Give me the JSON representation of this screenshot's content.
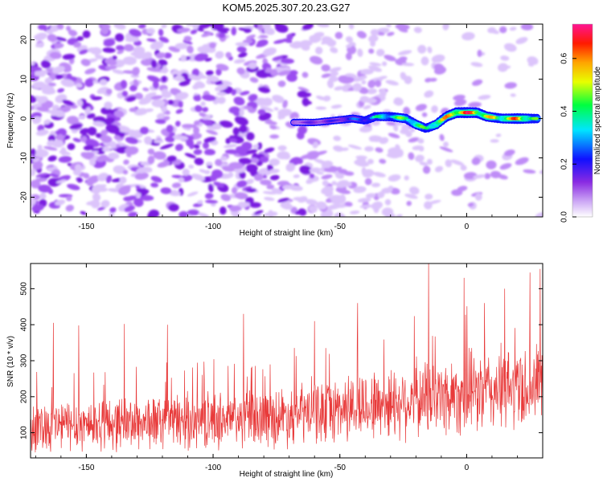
{
  "title": "KOM5.2025.307.20.23.G27",
  "chart_data": [
    {
      "type": "heatmap",
      "title": "KOM5.2025.307.20.23.G27",
      "xlabel": "Height of straight line (km)",
      "ylabel": "Frequency (Hz)",
      "xlim": [
        -172,
        30
      ],
      "ylim": [
        -25,
        24
      ],
      "xticks": [
        -150,
        -100,
        -50,
        0
      ],
      "yticks": [
        -20,
        -10,
        0,
        10,
        20
      ],
      "colorbar": {
        "label": "Normalized spectral amplitude",
        "range": [
          0,
          0.73
        ],
        "ticks": [
          0.0,
          0.2,
          0.4,
          0.6
        ]
      },
      "ridge": {
        "x": [
          -68,
          -60,
          -52,
          -45,
          -40,
          -36,
          -30,
          -24,
          -20,
          -16,
          -12,
          -8,
          -4,
          0,
          4,
          8,
          14,
          20,
          28
        ],
        "freq": [
          -1,
          -1,
          -0.5,
          0,
          -0.5,
          0.5,
          0.5,
          0,
          -1.5,
          -2.5,
          -1.5,
          0.5,
          1.5,
          1.5,
          1.5,
          0.5,
          0,
          0,
          0
        ],
        "amp": [
          0.15,
          0.18,
          0.2,
          0.28,
          0.3,
          0.4,
          0.45,
          0.5,
          0.5,
          0.45,
          0.55,
          0.62,
          0.7,
          0.72,
          0.66,
          0.6,
          0.55,
          0.68,
          0.45
        ]
      }
    },
    {
      "type": "line",
      "xlabel": "Height of straight line (km)",
      "ylabel": "SNR (10 * v/v)",
      "xlim": [
        -172,
        30
      ],
      "ylim": [
        30,
        570
      ],
      "xticks": [
        -150,
        -100,
        -50,
        0
      ],
      "yticks": [
        100,
        200,
        300,
        400,
        500
      ],
      "series": [
        {
          "name": "SNR",
          "color": "#e83a3a",
          "trend": {
            "x": [
              -172,
              -120,
              -80,
              -40,
              0,
              30
            ],
            "mean": [
              120,
              130,
              140,
              175,
              210,
              230
            ],
            "spread": [
              85,
              90,
              95,
              115,
              135,
              140
            ]
          },
          "peaks": {
            "x": [
              -163,
              -153,
              -135,
              -118,
              -88,
              -60,
              -43,
              -15,
              -1,
              7,
              15,
              25,
              29
            ],
            "y": [
              405,
              398,
              402,
              400,
              430,
              410,
              460,
              570,
              530,
              460,
              500,
              545,
              555
            ]
          }
        }
      ]
    }
  ],
  "colors": {
    "line": "#e83a3a",
    "frame": "#000000"
  }
}
